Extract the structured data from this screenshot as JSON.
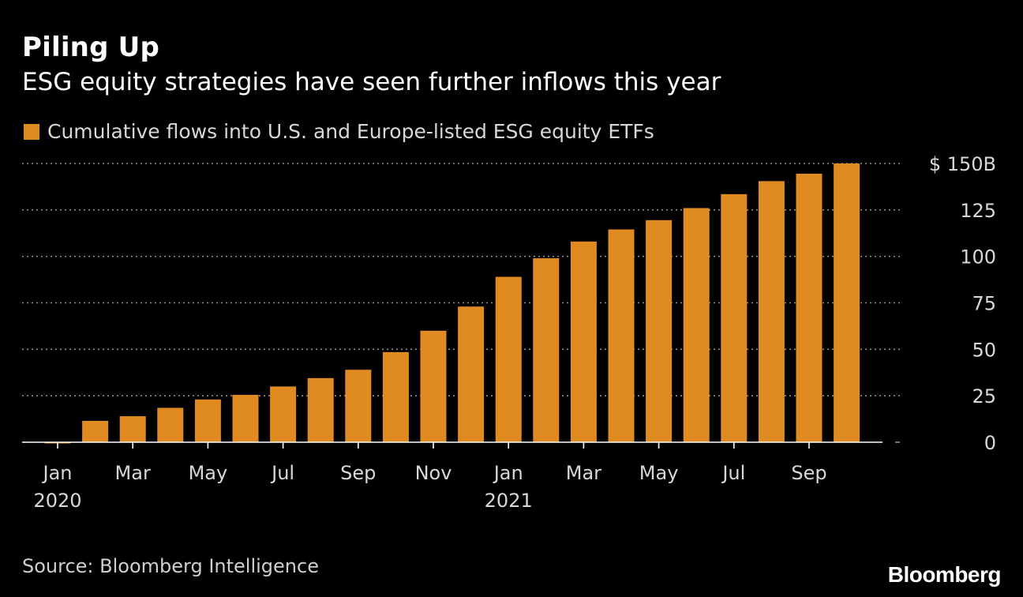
{
  "title": "Piling Up",
  "subtitle": "ESG equity strategies have seen further inflows this year",
  "legend": {
    "label": "Cumulative flows into U.S. and Europe-listed ESG equity ETFs",
    "color": "#e08b22"
  },
  "source": "Source: Bloomberg Intelligence",
  "brand": "Bloomberg",
  "chart_data": {
    "type": "bar",
    "categories": [
      "2020-01",
      "2020-02",
      "2020-03",
      "2020-04",
      "2020-05",
      "2020-06",
      "2020-07",
      "2020-08",
      "2020-09",
      "2020-10",
      "2020-11",
      "2020-12",
      "2021-01",
      "2021-02",
      "2021-03",
      "2021-04",
      "2021-05",
      "2021-06",
      "2021-07",
      "2021-08",
      "2021-09",
      "2021-10"
    ],
    "series": [
      {
        "name": "Cumulative flows into U.S. and Europe-listed ESG equity ETFs",
        "values": [
          -0.5,
          11.5,
          14,
          18.5,
          23,
          25.5,
          30,
          34.5,
          39,
          48.5,
          60,
          73,
          89,
          99,
          108,
          114.5,
          119.5,
          126,
          133.5,
          140.5,
          144.5,
          150
        ]
      }
    ],
    "x_tick_labels": [
      {
        "index": 0,
        "line1": "Jan",
        "line2": "2020"
      },
      {
        "index": 2,
        "line1": "Mar",
        "line2": ""
      },
      {
        "index": 4,
        "line1": "May",
        "line2": ""
      },
      {
        "index": 6,
        "line1": "Jul",
        "line2": ""
      },
      {
        "index": 8,
        "line1": "Sep",
        "line2": ""
      },
      {
        "index": 10,
        "line1": "Nov",
        "line2": ""
      },
      {
        "index": 12,
        "line1": "Jan",
        "line2": "2021"
      },
      {
        "index": 14,
        "line1": "Mar",
        "line2": ""
      },
      {
        "index": 16,
        "line1": "May",
        "line2": ""
      },
      {
        "index": 18,
        "line1": "Jul",
        "line2": ""
      },
      {
        "index": 20,
        "line1": "Sep",
        "line2": ""
      }
    ],
    "y_ticks": [
      0,
      25,
      50,
      75,
      100,
      125,
      150
    ],
    "y_tick_labels": [
      "0",
      "25",
      "50",
      "75",
      "100",
      "125",
      "$ 150B"
    ],
    "ylim": [
      0,
      150
    ],
    "grid": true,
    "grid_style": "dotted",
    "legend_placement": "top-left",
    "bar_color": "#e08b22",
    "grid_color": "#8c8c8c",
    "axis_color": "#ffffff"
  }
}
